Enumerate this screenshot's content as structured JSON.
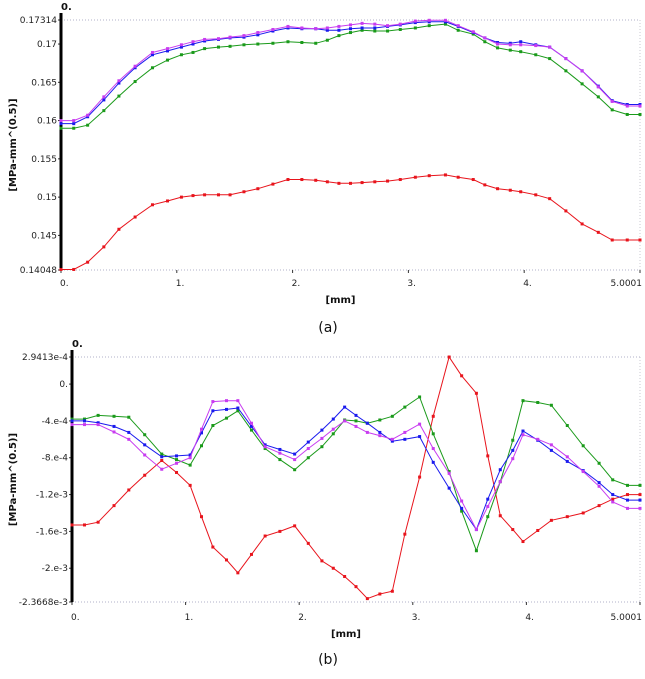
{
  "colors": {
    "red": "#e8141c",
    "green": "#1a9a1a",
    "blue": "#1a1aee",
    "magenta": "#c83cf0"
  },
  "chart_data": [
    {
      "type": "line",
      "caption": "(a)",
      "origin_label": "0.",
      "xlabel": "[mm]",
      "ylabel": "[MPa-mm^(0.5)]",
      "xlim": [
        0,
        5.0001
      ],
      "ylim": [
        0.14048,
        0.17314
      ],
      "x_ticks": [
        0,
        1,
        2,
        3,
        4,
        5.0001
      ],
      "x_tick_labels": [
        "0.",
        "1.",
        "2.",
        "3.",
        "4.",
        "5.0001"
      ],
      "y_ticks": [
        0.14048,
        0.145,
        0.15,
        0.155,
        0.16,
        0.165,
        0.17,
        0.17314
      ],
      "y_tick_labels": [
        "0.14048",
        "0.145",
        "0.15",
        "0.155",
        "0.16",
        "0.165",
        "0.17",
        "0.17314"
      ],
      "grid": "top-bottom dotted",
      "x": [
        0,
        0.11,
        0.23,
        0.37,
        0.5,
        0.64,
        0.79,
        0.92,
        1.04,
        1.14,
        1.24,
        1.36,
        1.46,
        1.58,
        1.7,
        1.83,
        1.96,
        2.08,
        2.2,
        2.3,
        2.4,
        2.5,
        2.6,
        2.71,
        2.82,
        2.93,
        3.06,
        3.18,
        3.32,
        3.43,
        3.56,
        3.66,
        3.77,
        3.88,
        3.97,
        4.1,
        4.22,
        4.36,
        4.5,
        4.64,
        4.76,
        4.89,
        5.0001
      ],
      "series": [
        {
          "color": "red",
          "values": [
            0.14055,
            0.14055,
            0.1415,
            0.1435,
            0.1458,
            0.1474,
            0.149,
            0.1495,
            0.15,
            0.1502,
            0.1503,
            0.1503,
            0.1503,
            0.1507,
            0.1511,
            0.1517,
            0.1523,
            0.1523,
            0.1522,
            0.152,
            0.1518,
            0.1518,
            0.1519,
            0.152,
            0.1521,
            0.1523,
            0.1526,
            0.1528,
            0.1529,
            0.1526,
            0.1523,
            0.1516,
            0.1511,
            0.1509,
            0.1507,
            0.1503,
            0.1498,
            0.1482,
            0.1465,
            0.1454,
            0.1444,
            0.1444,
            0.1444
          ]
        },
        {
          "color": "green",
          "values": [
            0.159,
            0.159,
            0.1594,
            0.1613,
            0.1632,
            0.1651,
            0.1669,
            0.1679,
            0.1686,
            0.1689,
            0.1694,
            0.1696,
            0.1697,
            0.1699,
            0.17,
            0.1701,
            0.1703,
            0.1702,
            0.1701,
            0.1705,
            0.1711,
            0.1715,
            0.1718,
            0.1717,
            0.1717,
            0.1719,
            0.1721,
            0.1724,
            0.1726,
            0.1718,
            0.1713,
            0.1703,
            0.1695,
            0.1692,
            0.169,
            0.1686,
            0.1681,
            0.1665,
            0.1648,
            0.1631,
            0.1614,
            0.1608,
            0.1608
          ]
        },
        {
          "color": "blue",
          "values": [
            0.1596,
            0.1596,
            0.1605,
            0.1627,
            0.1649,
            0.1669,
            0.1686,
            0.1691,
            0.1696,
            0.17,
            0.1704,
            0.1706,
            0.1708,
            0.1709,
            0.1712,
            0.1717,
            0.1721,
            0.172,
            0.172,
            0.1718,
            0.1718,
            0.172,
            0.1721,
            0.1721,
            0.1723,
            0.1725,
            0.1728,
            0.1729,
            0.1729,
            0.1723,
            0.1715,
            0.1708,
            0.1702,
            0.1701,
            0.1703,
            0.1699,
            0.1696,
            0.1681,
            0.1665,
            0.1645,
            0.1626,
            0.1621,
            0.1621
          ]
        },
        {
          "color": "magenta",
          "values": [
            0.16,
            0.16,
            0.1607,
            0.1631,
            0.1652,
            0.1671,
            0.1689,
            0.1694,
            0.1699,
            0.1703,
            0.1706,
            0.1707,
            0.1709,
            0.1711,
            0.1715,
            0.1719,
            0.1723,
            0.1721,
            0.172,
            0.1721,
            0.1723,
            0.1725,
            0.1727,
            0.1726,
            0.1724,
            0.1726,
            0.173,
            0.1731,
            0.1731,
            0.1724,
            0.1716,
            0.1708,
            0.17,
            0.1699,
            0.1699,
            0.1698,
            0.1696,
            0.1681,
            0.1665,
            0.1644,
            0.1625,
            0.1619,
            0.1619
          ]
        }
      ]
    },
    {
      "type": "line",
      "caption": "(b)",
      "origin_label": "0.",
      "xlabel": "[mm]",
      "ylabel": "[MPa-mm^(0.5)]",
      "xlim": [
        0,
        5.0001
      ],
      "ylim": [
        -0.0023668,
        0.00029413
      ],
      "x_ticks": [
        0,
        1,
        2,
        3,
        4,
        5.0001
      ],
      "x_tick_labels": [
        "0.",
        "1.",
        "2.",
        "3.",
        "4.",
        "5.0001"
      ],
      "y_ticks": [
        -0.0023668,
        -0.002,
        -0.0016,
        -0.0012,
        -0.0008,
        -0.0004,
        0,
        0.00029413
      ],
      "y_tick_labels": [
        "-2.3668e-3",
        "-2.e-3",
        "-1.6e-3",
        "-1.2e-3",
        "-8.e-4",
        "-4.e-4",
        "0.",
        "2.9413e-4"
      ],
      "grid": "top-bottom dotted",
      "x": [
        0,
        0.11,
        0.23,
        0.37,
        0.5,
        0.64,
        0.79,
        0.92,
        1.04,
        1.14,
        1.24,
        1.36,
        1.46,
        1.58,
        1.7,
        1.83,
        1.96,
        2.08,
        2.2,
        2.3,
        2.4,
        2.5,
        2.6,
        2.71,
        2.82,
        2.93,
        3.06,
        3.18,
        3.32,
        3.43,
        3.56,
        3.66,
        3.77,
        3.88,
        3.97,
        4.1,
        4.22,
        4.36,
        4.5,
        4.64,
        4.76,
        4.89,
        5.0001
      ],
      "series": [
        {
          "color": "red",
          "values": [
            -0.00153,
            -0.00153,
            -0.0015,
            -0.00132,
            -0.00115,
            -0.00099,
            -0.00083,
            -0.00096,
            -0.0011,
            -0.00144,
            -0.00177,
            -0.00191,
            -0.00205,
            -0.00185,
            -0.00165,
            -0.0016,
            -0.00154,
            -0.00173,
            -0.00192,
            -0.002,
            -0.00209,
            -0.0022,
            -0.00233,
            -0.00228,
            -0.00225,
            -0.00163,
            -0.00101,
            -0.00035,
            0.000294,
            9e-05,
            -0.0001,
            -0.00078,
            -0.00143,
            -0.00158,
            -0.00171,
            -0.00159,
            -0.00148,
            -0.00144,
            -0.0014,
            -0.00132,
            -0.00125,
            -0.0012,
            -0.0012
          ]
        },
        {
          "color": "green",
          "values": [
            -0.00038,
            -0.00038,
            -0.00034,
            -0.00035,
            -0.00036,
            -0.00055,
            -0.00076,
            -0.00082,
            -0.00088,
            -0.00067,
            -0.00045,
            -0.00037,
            -0.00029,
            -0.0005,
            -0.0007,
            -0.00082,
            -0.00093,
            -0.0008,
            -0.00068,
            -0.00054,
            -0.00039,
            -0.0004,
            -0.000425,
            -0.00039,
            -0.00035,
            -0.00025,
            -0.00014,
            -0.00054,
            -0.00095,
            -0.00138,
            -0.00181,
            -0.00144,
            -0.00106,
            -0.00061,
            -0.00018,
            -0.0002,
            -0.00023,
            -0.00045,
            -0.00067,
            -0.00086,
            -0.00104,
            -0.0011,
            -0.0011
          ]
        },
        {
          "color": "blue",
          "values": [
            -0.0004,
            -0.0004,
            -0.00042,
            -0.00046,
            -0.000525,
            -0.00066,
            -0.00079,
            -0.00078,
            -0.00077,
            -0.00053,
            -0.00029,
            -0.000275,
            -0.00026,
            -0.00046,
            -0.00066,
            -0.00071,
            -0.00076,
            -0.00063,
            -0.0005,
            -0.00038,
            -0.00025,
            -0.00034,
            -0.000425,
            -0.000525,
            -0.00062,
            -0.0006,
            -0.00057,
            -0.00085,
            -0.00113,
            -0.00135,
            -0.00158,
            -0.00125,
            -0.00093,
            -0.00072,
            -0.00051,
            -0.00061,
            -0.00072,
            -0.00084,
            -0.00094,
            -0.00107,
            -0.0012,
            -0.00126,
            -0.00126
          ]
        },
        {
          "color": "magenta",
          "values": [
            -0.00044,
            -0.00044,
            -0.00044,
            -0.00052,
            -0.0006,
            -0.00077,
            -0.000925,
            -0.00086,
            -0.0008,
            -0.00049,
            -0.00019,
            -0.00018,
            -0.00018,
            -0.000425,
            -0.00068,
            -0.00075,
            -0.00082,
            -0.0007,
            -0.00059,
            -0.00049,
            -0.0004,
            -0.00046,
            -0.000525,
            -0.00056,
            -0.0006,
            -0.000525,
            -0.000435,
            -0.0007,
            -0.00097,
            -0.00127,
            -0.00158,
            -0.00133,
            -0.00106,
            -0.00081,
            -0.00055,
            -0.0006,
            -0.00066,
            -0.00079,
            -0.00095,
            -0.00111,
            -0.00128,
            -0.00135,
            -0.00135
          ]
        }
      ]
    }
  ]
}
